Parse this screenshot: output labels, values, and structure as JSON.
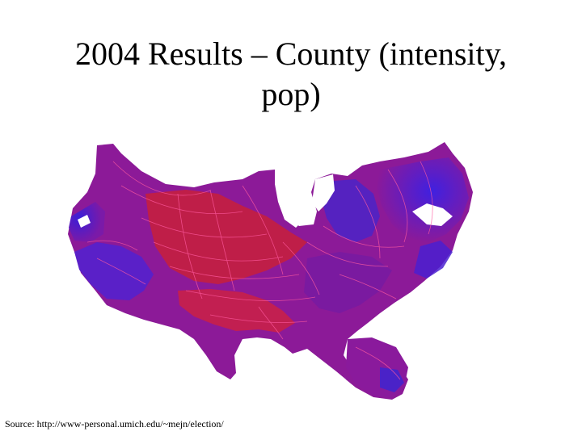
{
  "slide": {
    "title_line1": "2004 Results – County (intensity,",
    "title_line2": "pop)",
    "source": "Source: http://www-personal.umich.edu/~mejn/election/"
  },
  "map": {
    "colors": {
      "republican_red": "#e0203a",
      "democratic_blue": "#3a1ed8",
      "mixed_purple": "#8a1a9a",
      "county_lines": "#ff5aa0",
      "background": "#ffffff"
    }
  }
}
